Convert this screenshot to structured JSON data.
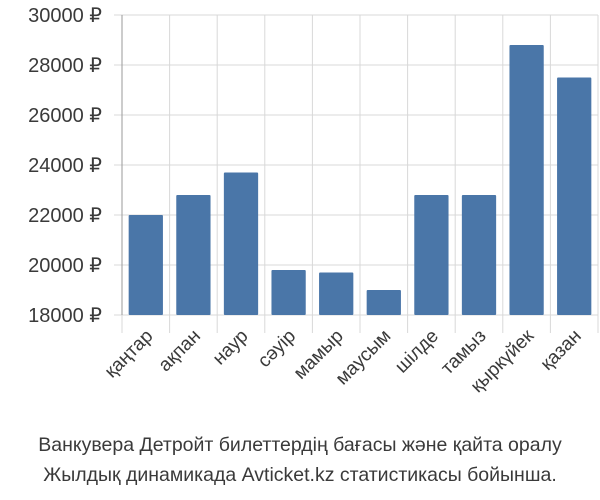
{
  "chart_data": {
    "type": "bar",
    "categories": [
      "қаңтар",
      "ақпан",
      "наур",
      "сәуір",
      "мамыр",
      "маусым",
      "шілде",
      "тамыз",
      "қыркүйек",
      "қазан"
    ],
    "values": [
      22000,
      22800,
      23700,
      19800,
      19700,
      19000,
      22800,
      22800,
      28800,
      27500
    ],
    "ylim": [
      18000,
      30000
    ],
    "yticks": [
      "18000 ₽",
      "20000 ₽",
      "22000 ₽",
      "24000 ₽",
      "26000 ₽",
      "28000 ₽",
      "30000 ₽"
    ],
    "ytick_values": [
      18000,
      20000,
      22000,
      24000,
      26000,
      28000,
      30000
    ],
    "bar_color": "#4a76a8",
    "grid_color": "#d8d8d8",
    "grid": true
  },
  "caption": {
    "line1": "Ванкувера Детройт билеттердің бағасы және қайта оралу",
    "line2": "Жылдық динамикада Avticket.kz статистикасы бойынша."
  }
}
